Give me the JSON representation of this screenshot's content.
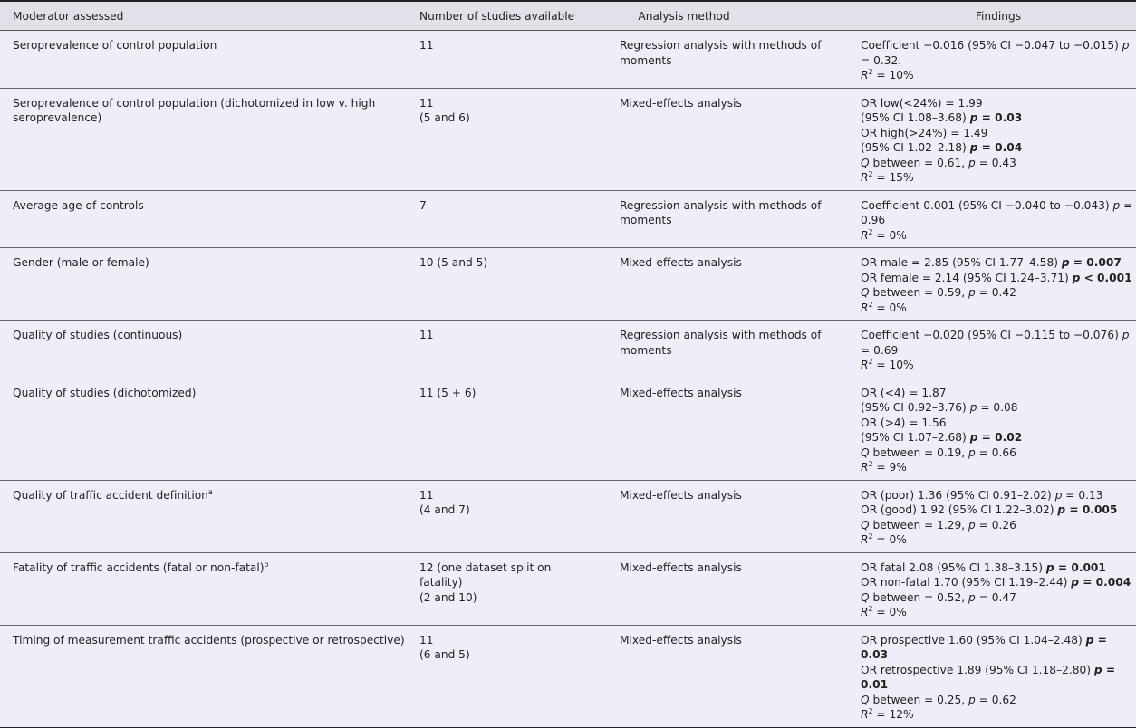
{
  "headers": [
    "Moderator assessed",
    "Number of studies available",
    "Analysis method",
    "Findings"
  ],
  "rows": [
    {
      "moderator": "Seroprevalence of control population",
      "moderator_sup": "",
      "studies": [
        "11"
      ],
      "method": "Regression analysis with methods of moments",
      "findings": [
        [
          {
            "t": "Coefficient −0.016 (95% CI −0.047 to −0.015) "
          },
          {
            "t": "p",
            "f": "i"
          }
        ],
        [
          {
            "t": "= 0.32."
          }
        ],
        [
          {
            "t": "R",
            "f": "i"
          },
          {
            "t": "2",
            "f": "sup"
          },
          {
            "t": " = 10%"
          }
        ]
      ]
    },
    {
      "moderator": "Seroprevalence of control population (dichotomized in low v. high seroprevalence)",
      "moderator_sup": "",
      "studies": [
        "11",
        "(5 and 6)"
      ],
      "method": "Mixed-effects analysis",
      "findings": [
        [
          {
            "t": "OR low(<24%) = 1.99"
          }
        ],
        [
          {
            "t": "(95% CI 1.08–3.68) "
          },
          {
            "t": "p",
            "f": "bi"
          },
          {
            "t": " = 0.03",
            "f": "b"
          }
        ],
        [
          {
            "t": "OR high(>24%) = 1.49"
          }
        ],
        [
          {
            "t": "(95% CI 1.02–2.18) "
          },
          {
            "t": "p",
            "f": "bi"
          },
          {
            "t": " = 0.04",
            "f": "b"
          }
        ],
        [
          {
            "t": "Q",
            "f": "i"
          },
          {
            "t": " between = 0.61, "
          },
          {
            "t": "p",
            "f": "i"
          },
          {
            "t": " = 0.43"
          }
        ],
        [
          {
            "t": "R",
            "f": "i"
          },
          {
            "t": "2",
            "f": "sup"
          },
          {
            "t": " = 15%"
          }
        ]
      ]
    },
    {
      "moderator": "Average age of controls",
      "moderator_sup": "",
      "studies": [
        "7"
      ],
      "method": "Regression analysis with methods of moments",
      "findings": [
        [
          {
            "t": "Coefficient 0.001 (95% CI −0.040 to −0.043) "
          },
          {
            "t": "p",
            "f": "i"
          },
          {
            "t": " ="
          }
        ],
        [
          {
            "t": "0.96"
          }
        ],
        [
          {
            "t": "R",
            "f": "i"
          },
          {
            "t": "2",
            "f": "sup"
          },
          {
            "t": " = 0%"
          }
        ]
      ]
    },
    {
      "moderator": "Gender (male or female)",
      "moderator_sup": "",
      "studies": [
        "10 (5 and 5)"
      ],
      "method": "Mixed-effects analysis",
      "findings": [
        [
          {
            "t": "OR male = 2.85 (95% CI 1.77–4.58) "
          },
          {
            "t": "p",
            "f": "bi"
          },
          {
            "t": " = 0.007",
            "f": "b"
          }
        ],
        [
          {
            "t": "OR female = 2.14 (95% CI 1.24–3.71) "
          },
          {
            "t": "p",
            "f": "bi"
          },
          {
            "t": " < 0.001",
            "f": "b"
          }
        ],
        [
          {
            "t": "Q",
            "f": "i"
          },
          {
            "t": " between = 0.59, "
          },
          {
            "t": "p",
            "f": "i"
          },
          {
            "t": " = 0.42"
          }
        ],
        [
          {
            "t": "R",
            "f": "i"
          },
          {
            "t": "2",
            "f": "sup"
          },
          {
            "t": " = 0%"
          }
        ]
      ]
    },
    {
      "moderator": "Quality of studies (continuous)",
      "moderator_sup": "",
      "studies": [
        "11"
      ],
      "method": "Regression analysis with methods of moments",
      "findings": [
        [
          {
            "t": "Coefficient −0.020 (95% CI −0.115 to −0.076) "
          },
          {
            "t": "p",
            "f": "i"
          }
        ],
        [
          {
            "t": "= 0.69"
          }
        ],
        [
          {
            "t": "R",
            "f": "i"
          },
          {
            "t": "2",
            "f": "sup"
          },
          {
            "t": " = 10%"
          }
        ]
      ]
    },
    {
      "moderator": "Quality of studies (dichotomized)",
      "moderator_sup": "",
      "studies": [
        "11 (5 + 6)"
      ],
      "method": "Mixed-effects analysis",
      "findings": [
        [
          {
            "t": "OR (<4) = 1.87"
          }
        ],
        [
          {
            "t": "(95% CI 0.92–3.76) "
          },
          {
            "t": "p",
            "f": "i"
          },
          {
            "t": " = 0.08"
          }
        ],
        [
          {
            "t": "OR (>4) = 1.56"
          }
        ],
        [
          {
            "t": "(95% CI 1.07–2.68) "
          },
          {
            "t": "p",
            "f": "bi"
          },
          {
            "t": " = 0.02",
            "f": "b"
          }
        ],
        [
          {
            "t": "Q",
            "f": "i"
          },
          {
            "t": " between = 0.19, "
          },
          {
            "t": "p",
            "f": "i"
          },
          {
            "t": " = 0.66"
          }
        ],
        [
          {
            "t": "R",
            "f": "i"
          },
          {
            "t": "2",
            "f": "sup"
          },
          {
            "t": " = 9%"
          }
        ]
      ]
    },
    {
      "moderator": "Quality of traffic accident definition",
      "moderator_sup": "a",
      "studies": [
        "11",
        "(4 and 7)"
      ],
      "method": "Mixed-effects analysis",
      "findings": [
        [
          {
            "t": "OR (poor) 1.36 (95% CI 0.91–2.02) "
          },
          {
            "t": "p",
            "f": "i"
          },
          {
            "t": " = 0.13"
          }
        ],
        [
          {
            "t": "OR (good) 1.92 (95% CI 1.22–3.02) "
          },
          {
            "t": "p",
            "f": "bi"
          },
          {
            "t": " = 0.005",
            "f": "b"
          }
        ],
        [
          {
            "t": "Q",
            "f": "i"
          },
          {
            "t": " between = 1.29, "
          },
          {
            "t": "p",
            "f": "i"
          },
          {
            "t": " = 0.26"
          }
        ],
        [
          {
            "t": "R",
            "f": "i"
          },
          {
            "t": "2",
            "f": "sup"
          },
          {
            "t": " = 0%"
          }
        ]
      ]
    },
    {
      "moderator": "Fatality of traffic accidents (fatal or non-fatal)",
      "moderator_sup": "b",
      "studies": [
        "12 (one dataset split on",
        "fatality)",
        "(2 and 10)"
      ],
      "method": "Mixed-effects analysis",
      "findings": [
        [
          {
            "t": "OR fatal 2.08 (95% CI 1.38–3.15) "
          },
          {
            "t": "p",
            "f": "bi"
          },
          {
            "t": " = 0.001",
            "f": "b"
          }
        ],
        [
          {
            "t": "OR non-fatal 1.70 (95% CI 1.19–2.44) "
          },
          {
            "t": "p",
            "f": "bi"
          },
          {
            "t": " = 0.004",
            "f": "b"
          }
        ],
        [
          {
            "t": "Q",
            "f": "i"
          },
          {
            "t": " between = 0.52, "
          },
          {
            "t": "p",
            "f": "i"
          },
          {
            "t": " = 0.47"
          }
        ],
        [
          {
            "t": "R",
            "f": "i"
          },
          {
            "t": "2",
            "f": "sup"
          },
          {
            "t": " = 0%"
          }
        ]
      ]
    },
    {
      "moderator": "Timing of measurement traffic accidents (prospective or retrospective)",
      "moderator_sup": "",
      "studies": [
        "11",
        "(6 and 5)"
      ],
      "method": "Mixed-effects analysis",
      "findings": [
        [
          {
            "t": "OR prospective 1.60 (95% CI 1.04–2.48) "
          },
          {
            "t": "p",
            "f": "bi"
          },
          {
            "t": " = 0.03",
            "f": "b"
          }
        ],
        [
          {
            "t": "OR retrospective 1.89 (95% CI 1.18–2.80) "
          },
          {
            "t": "p",
            "f": "bi"
          },
          {
            "t": " =",
            "f": "b"
          }
        ],
        [
          {
            "t": "0.01",
            "f": "b"
          }
        ],
        [
          {
            "t": "Q",
            "f": "i"
          },
          {
            "t": " between = 0.25, "
          },
          {
            "t": "p",
            "f": "i"
          },
          {
            "t": " = 0.62"
          }
        ],
        [
          {
            "t": "R",
            "f": "i"
          },
          {
            "t": "2",
            "f": "sup"
          },
          {
            "t": " = 12%"
          }
        ]
      ]
    }
  ]
}
